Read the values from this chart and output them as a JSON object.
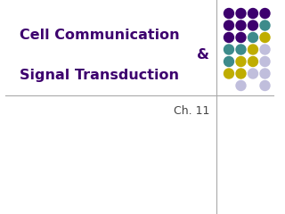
{
  "title_line1": "Cell Communication",
  "title_line2": "&",
  "title_line3": "Signal Transduction",
  "subtitle": "Ch. 11",
  "title_color": "#3D006E",
  "subtitle_color": "#444444",
  "bg_color": "#FFFFFF",
  "divider_color": "#AAAAAA",
  "dot_colors": {
    "purple": "#3D006E",
    "teal": "#3D8B8B",
    "yellow": "#BFAD00",
    "light": "#C0BEDC"
  },
  "dot_grid": [
    [
      "purple",
      "purple",
      "purple",
      "purple"
    ],
    [
      "purple",
      "purple",
      "purple",
      "teal"
    ],
    [
      "purple",
      "purple",
      "teal",
      "yellow"
    ],
    [
      "teal",
      "teal",
      "yellow",
      "light"
    ],
    [
      "teal",
      "yellow",
      "yellow",
      "light"
    ],
    [
      "yellow",
      "yellow",
      "light",
      "light"
    ],
    [
      "none",
      "light",
      "none",
      "light"
    ]
  ]
}
